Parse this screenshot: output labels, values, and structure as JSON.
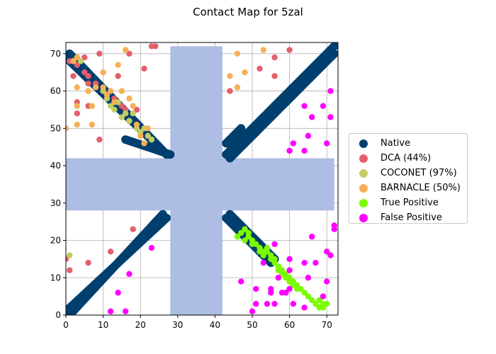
{
  "chart_data": {
    "type": "scatter",
    "title": "Contact Map for 5zal",
    "xlabel": "",
    "ylabel": "",
    "xlim": [
      0,
      73
    ],
    "ylim": [
      0,
      73
    ],
    "grid": true,
    "xticks": [
      0,
      10,
      20,
      30,
      40,
      50,
      60,
      70
    ],
    "yticks": [
      0,
      10,
      20,
      30,
      40,
      50,
      60,
      70
    ],
    "legend_position": "center-right outside",
    "masked_region": {
      "color": "#aebde4",
      "range": [
        28,
        42
      ],
      "extent": [
        0,
        72
      ]
    },
    "native_bands": [
      {
        "from": [
          0,
          1
        ],
        "to": [
          27,
          26
        ]
      },
      {
        "from": [
          1,
          0
        ],
        "to": [
          26,
          27
        ]
      },
      {
        "from": [
          1,
          70
        ],
        "to": [
          27,
          43
        ]
      },
      {
        "from": [
          0,
          69
        ],
        "to": [
          26,
          44
        ]
      },
      {
        "from": [
          43,
          26
        ],
        "to": [
          55,
          14
        ]
      },
      {
        "from": [
          44,
          27
        ],
        "to": [
          56,
          15
        ]
      },
      {
        "from": [
          43,
          43
        ],
        "to": [
          72,
          72
        ]
      },
      {
        "from": [
          44,
          42
        ],
        "to": [
          72,
          70
        ]
      },
      {
        "from": [
          16,
          47
        ],
        "to": [
          28,
          43
        ]
      },
      {
        "from": [
          43,
          46
        ],
        "to": [
          47,
          50
        ]
      }
    ],
    "series": [
      {
        "name": "Native",
        "color": "#003f6e"
      },
      {
        "name": "DCA (44%)",
        "color": "#e45f6a",
        "points": [
          [
            1,
            68
          ],
          [
            2,
            64
          ],
          [
            3,
            67
          ],
          [
            3,
            69
          ],
          [
            3,
            57
          ],
          [
            3,
            54
          ],
          [
            5,
            65
          ],
          [
            5,
            69
          ],
          [
            6,
            64
          ],
          [
            6,
            62
          ],
          [
            6,
            56
          ],
          [
            7,
            56
          ],
          [
            8,
            62
          ],
          [
            9,
            70
          ],
          [
            9,
            47
          ],
          [
            10,
            60
          ],
          [
            11,
            59
          ],
          [
            13,
            58
          ],
          [
            14,
            64
          ],
          [
            15,
            56
          ],
          [
            16,
            55
          ],
          [
            17,
            70
          ],
          [
            17,
            52
          ],
          [
            18,
            23
          ],
          [
            19,
            55
          ],
          [
            21,
            66
          ],
          [
            23,
            72
          ],
          [
            24,
            72
          ],
          [
            12,
            17
          ],
          [
            6,
            14
          ],
          [
            1,
            12
          ],
          [
            0,
            15
          ],
          [
            44,
            60
          ],
          [
            52,
            66
          ],
          [
            56,
            69
          ],
          [
            56,
            64
          ],
          [
            60,
            71
          ]
        ]
      },
      {
        "name": "COCONET (97%)",
        "color": "#c3cd63",
        "points": [
          [
            2,
            68
          ],
          [
            4,
            68
          ],
          [
            10,
            60
          ],
          [
            11,
            58
          ],
          [
            12,
            56
          ],
          [
            13,
            55
          ],
          [
            14,
            57
          ],
          [
            15,
            53
          ],
          [
            16,
            54
          ],
          [
            17,
            52
          ],
          [
            18,
            54
          ],
          [
            19,
            50
          ],
          [
            20,
            49
          ],
          [
            21,
            50
          ],
          [
            22,
            48
          ],
          [
            23,
            47
          ],
          [
            1,
            16
          ]
        ]
      },
      {
        "name": "BARNACLE (50%)",
        "color": "#f5b057",
        "points": [
          [
            0,
            50
          ],
          [
            2,
            68
          ],
          [
            3,
            69
          ],
          [
            3,
            61
          ],
          [
            3,
            56
          ],
          [
            3,
            51
          ],
          [
            6,
            60
          ],
          [
            7,
            56
          ],
          [
            7,
            51
          ],
          [
            8,
            61
          ],
          [
            10,
            65
          ],
          [
            10,
            61
          ],
          [
            11,
            59
          ],
          [
            12,
            60
          ],
          [
            13,
            57
          ],
          [
            14,
            67
          ],
          [
            15,
            60
          ],
          [
            16,
            71
          ],
          [
            17,
            58
          ],
          [
            18,
            56
          ],
          [
            19,
            51
          ],
          [
            20,
            48
          ],
          [
            21,
            46
          ],
          [
            22,
            50
          ],
          [
            44,
            64
          ],
          [
            46,
            70
          ],
          [
            46,
            61
          ],
          [
            48,
            65
          ],
          [
            53,
            71
          ]
        ]
      },
      {
        "name": "True Positive",
        "color": "#7cfc00",
        "points": [
          [
            46,
            21
          ],
          [
            47,
            22
          ],
          [
            48,
            23
          ],
          [
            48,
            20
          ],
          [
            49,
            21
          ],
          [
            49,
            22
          ],
          [
            50,
            20
          ],
          [
            50,
            19
          ],
          [
            51,
            19
          ],
          [
            52,
            18
          ],
          [
            52,
            17
          ],
          [
            53,
            17
          ],
          [
            53,
            16
          ],
          [
            54,
            18
          ],
          [
            54,
            17
          ],
          [
            55,
            16
          ],
          [
            55,
            15
          ],
          [
            56,
            15
          ],
          [
            56,
            14
          ],
          [
            57,
            13
          ],
          [
            57,
            12
          ],
          [
            58,
            12
          ],
          [
            58,
            11
          ],
          [
            59,
            10
          ],
          [
            59,
            11
          ],
          [
            60,
            10
          ],
          [
            60,
            9
          ],
          [
            61,
            9
          ],
          [
            61,
            8
          ],
          [
            62,
            8
          ],
          [
            62,
            7
          ],
          [
            63,
            7
          ],
          [
            64,
            6
          ],
          [
            65,
            5
          ],
          [
            66,
            4
          ],
          [
            67,
            3
          ],
          [
            68,
            4
          ],
          [
            68,
            2
          ],
          [
            69,
            3
          ],
          [
            69,
            2
          ],
          [
            70,
            3
          ]
        ]
      },
      {
        "name": "False Positive",
        "color": "#ff00ff",
        "points": [
          [
            12,
            1
          ],
          [
            14,
            6
          ],
          [
            16,
            1
          ],
          [
            17,
            11
          ],
          [
            23,
            18
          ],
          [
            47,
            9
          ],
          [
            50,
            1
          ],
          [
            51,
            7
          ],
          [
            51,
            3
          ],
          [
            53,
            14
          ],
          [
            54,
            3
          ],
          [
            55,
            6
          ],
          [
            55,
            7
          ],
          [
            56,
            3
          ],
          [
            56,
            19
          ],
          [
            57,
            10
          ],
          [
            58,
            6
          ],
          [
            59,
            6
          ],
          [
            60,
            44
          ],
          [
            60,
            15
          ],
          [
            60,
            12
          ],
          [
            60,
            7
          ],
          [
            61,
            46
          ],
          [
            61,
            3
          ],
          [
            64,
            56
          ],
          [
            64,
            44
          ],
          [
            64,
            14
          ],
          [
            64,
            2
          ],
          [
            65,
            48
          ],
          [
            65,
            10
          ],
          [
            66,
            53
          ],
          [
            66,
            21
          ],
          [
            67,
            14
          ],
          [
            69,
            56
          ],
          [
            69,
            5
          ],
          [
            70,
            46
          ],
          [
            70,
            17
          ],
          [
            70,
            9
          ],
          [
            71,
            60
          ],
          [
            71,
            53
          ],
          [
            71,
            16
          ],
          [
            72,
            24
          ],
          [
            72,
            23
          ]
        ]
      }
    ]
  }
}
